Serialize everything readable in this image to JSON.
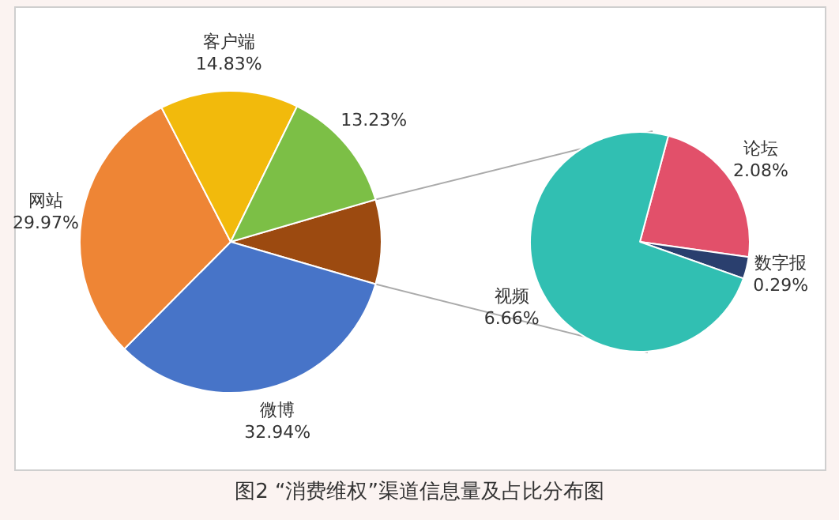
{
  "chart_data": [
    {
      "type": "pie",
      "title": "图2 “消费维权”渠道信息量及占比分布图",
      "categories": [
        null,
        "微博",
        "网站",
        "客户端",
        null
      ],
      "values": [
        9.03,
        32.94,
        29.97,
        14.83,
        13.23
      ],
      "value_labels": [
        null,
        "32.94%",
        "29.97%",
        "14.83%",
        "13.23%"
      ],
      "colors": [
        "#9c4a10",
        "#4774c8",
        "#ee8535",
        "#f2ba0c",
        "#7cbf46"
      ]
    },
    {
      "type": "pie",
      "categories": [
        "论坛",
        "数字报",
        "视频"
      ],
      "values": [
        2.08,
        0.29,
        6.66
      ],
      "value_labels": [
        "2.08%",
        "0.29%",
        "6.66%"
      ],
      "colors": [
        "#e2506a",
        "#2a3f6e",
        "#31bfb2"
      ]
    }
  ]
}
